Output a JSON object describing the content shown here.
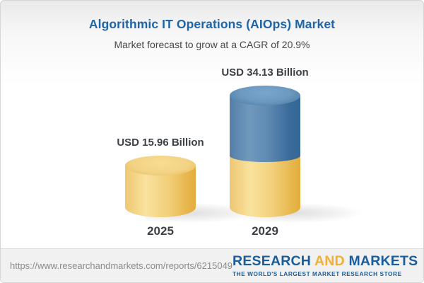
{
  "header": {
    "title": "Algorithmic IT Operations (AIOps) Market",
    "subtitle": "Market forecast to grow at a CAGR of 20.9%"
  },
  "chart_data": {
    "type": "bar",
    "bar_style": "3d-cylinder",
    "categories": [
      "2025",
      "2029"
    ],
    "values": [
      15.96,
      34.13
    ],
    "value_labels": [
      "USD 15.96 Billion",
      "USD 34.13 Billion"
    ],
    "unit": "USD Billion",
    "title": "Algorithmic IT Operations (AIOps) Market",
    "subtitle": "Market forecast to grow at a CAGR of 20.9%",
    "cagr_percent": 20.9,
    "notes": "2029 bar is stacked: yellow base equal to 2025 value, blue segment shows growth above it",
    "colors": {
      "base_segment": "#f2cc6e",
      "growth_segment": "#4d7fac"
    },
    "legend": "none",
    "grid": false,
    "axes": "none"
  },
  "footer": {
    "url": "https://www.researchandmarkets.com/reports/6215049",
    "logo": {
      "part1": "RESEARCH",
      "part2": "AND",
      "part3": "MARKETS",
      "tagline": "THE WORLD'S LARGEST MARKET RESEARCH STORE"
    }
  },
  "colors": {
    "title_blue": "#1d64a8",
    "text_dark": "#3d4045",
    "logo_blue": "#1b5c9b",
    "logo_gold": "#f1af33",
    "footer_bg": "#f1f1f1"
  }
}
